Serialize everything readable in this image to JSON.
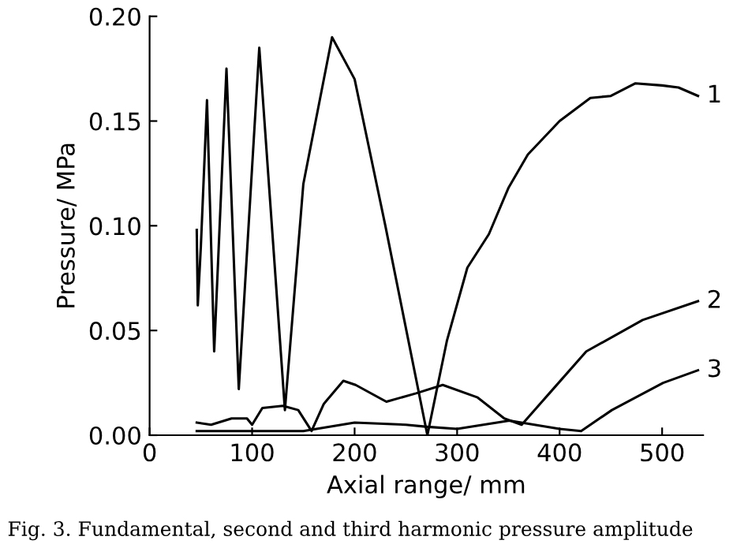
{
  "chart_data": {
    "type": "line",
    "xlabel": "Axial range/ mm",
    "ylabel": "Pressure/ MPa",
    "xlim": [
      0,
      540
    ],
    "ylim": [
      0,
      0.2
    ],
    "xticks": [
      0,
      100,
      200,
      300,
      400,
      500
    ],
    "yticks": [
      {
        "value": 0,
        "label": "0.00"
      },
      {
        "value": 0.05,
        "label": "0.05"
      },
      {
        "value": 0.1,
        "label": "0.10"
      },
      {
        "value": 0.15,
        "label": "0.15"
      },
      {
        "value": 0.2,
        "label": "0.20"
      }
    ],
    "grid": false,
    "legend": false,
    "marker": "none",
    "line_style": "solid",
    "annotations": [
      "Fig. 3. Fundamental, second and third harmonic pressure amplitude"
    ],
    "series": [
      {
        "name": "1",
        "color": "#000000",
        "x": [
          46,
          47,
          50,
          56,
          63,
          75,
          87,
          107,
          132,
          150,
          178,
          200,
          230,
          271,
          290,
          310,
          331,
          350,
          369,
          400,
          430,
          450,
          474,
          500,
          516,
          535
        ],
        "values": [
          0.098,
          0.062,
          0.09,
          0.16,
          0.04,
          0.175,
          0.022,
          0.185,
          0.012,
          0.12,
          0.19,
          0.17,
          0.1,
          0.0,
          0.045,
          0.08,
          0.096,
          0.118,
          0.134,
          0.15,
          0.161,
          0.162,
          0.168,
          0.167,
          0.166,
          0.162
        ]
      },
      {
        "name": "2",
        "color": "#000000",
        "x": [
          46,
          60,
          80,
          95,
          100,
          110,
          130,
          145,
          158,
          170,
          189,
          201,
          231,
          260,
          286,
          320,
          346,
          363,
          390,
          426,
          481,
          535
        ],
        "values": [
          0.006,
          0.005,
          0.008,
          0.008,
          0.005,
          0.013,
          0.014,
          0.012,
          0.002,
          0.015,
          0.026,
          0.024,
          0.016,
          0.02,
          0.024,
          0.018,
          0.008,
          0.005,
          0.02,
          0.04,
          0.055,
          0.064
        ]
      },
      {
        "name": "3",
        "color": "#000000",
        "x": [
          46,
          100,
          150,
          200,
          250,
          271,
          300,
          351,
          400,
          421,
          451,
          501,
          535
        ],
        "values": [
          0.002,
          0.002,
          0.002,
          0.006,
          0.005,
          0.004,
          0.003,
          0.007,
          0.003,
          0.002,
          0.012,
          0.025,
          0.031
        ]
      }
    ]
  }
}
